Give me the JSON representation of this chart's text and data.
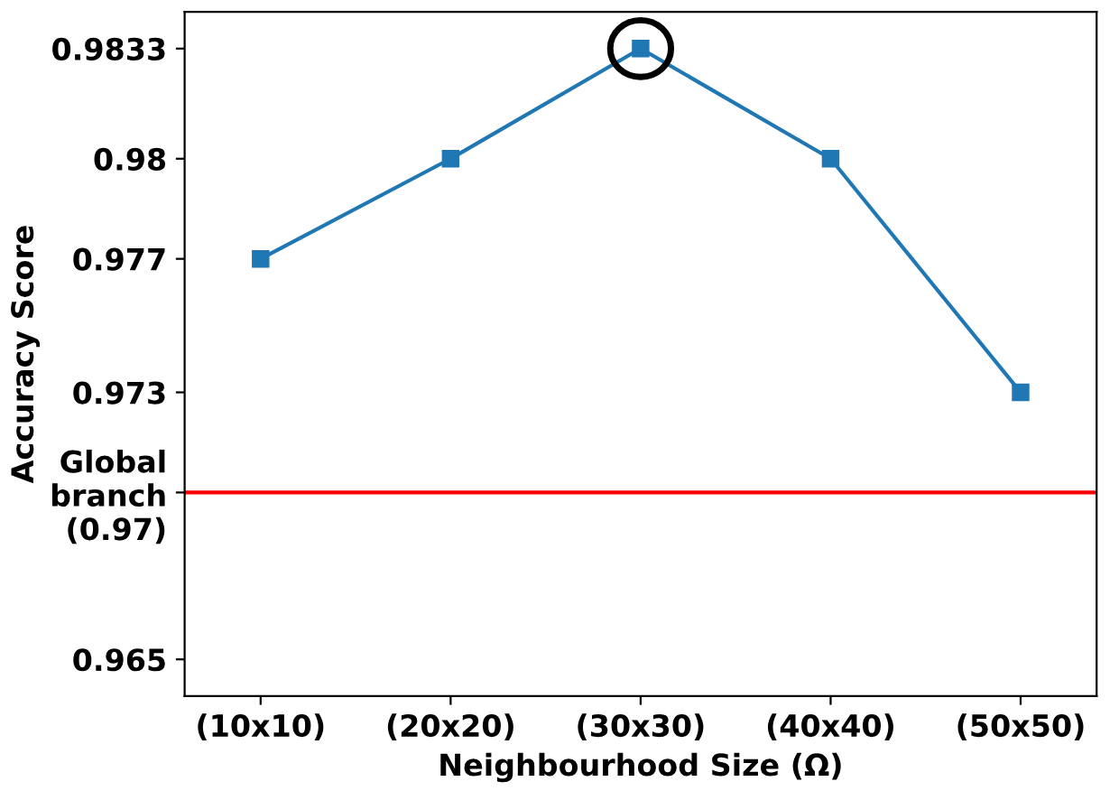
{
  "chart_data": {
    "type": "line",
    "xlabel": "Neighbourhood Size (Ω)",
    "ylabel": "Accuracy Score",
    "categories": [
      "(10x10)",
      "(20x20)",
      "(30x30)",
      "(40x40)",
      "(50x50)"
    ],
    "series": [
      {
        "color": "#1f77b4",
        "values": [
          0.977,
          0.98,
          0.9833,
          0.98,
          0.973
        ]
      }
    ],
    "marker": "square",
    "line_style": "solid",
    "grid": false,
    "ylim": [
      0.9639,
      0.9844
    ],
    "yticks": [
      0.965,
      {
        "value": 0.97,
        "label": "Global\nbranch\n(0.97)"
      },
      0.973,
      0.977,
      0.98,
      0.9833
    ],
    "ref_lines": [
      {
        "axis": "y",
        "value": 0.97,
        "color": "#ff0000",
        "line_style": "solid"
      }
    ]
  }
}
